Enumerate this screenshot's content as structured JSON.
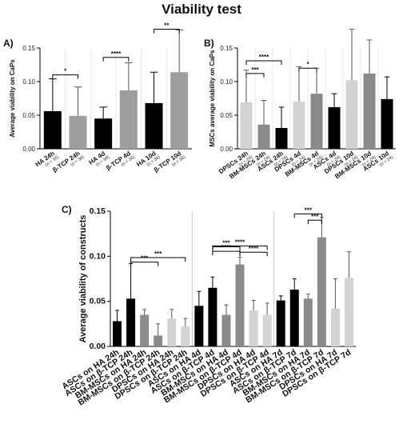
{
  "title": "Viability test",
  "chart_data": [
    {
      "panel": "A)",
      "type": "bar",
      "ylabel": "Average viability on CaPs",
      "ylim": [
        0,
        0.15
      ],
      "yticks": [
        "0.00",
        "0.05",
        "0.10",
        "0.15"
      ],
      "categories": [
        "HA 24h",
        "β-TCP 24h",
        "HA 4d",
        "β-TCP 4d",
        "HA 10d",
        "β-TCP 10d"
      ],
      "n_labels": [
        "(n = 36)",
        "(n = 36)",
        "(n = 36)",
        "(n = 36)",
        "(n = 36)",
        "(n = 36)"
      ],
      "values": [
        0.056,
        0.049,
        0.045,
        0.087,
        0.068,
        0.114
      ],
      "errors": [
        0.048,
        0.043,
        0.017,
        0.041,
        0.046,
        0.063
      ],
      "colors": [
        "#000000",
        "#9e9e9e",
        "#000000",
        "#9e9e9e",
        "#000000",
        "#9e9e9e"
      ],
      "significance": [
        {
          "from": 0,
          "to": 1,
          "y": 0.11,
          "label": "*"
        },
        {
          "from": 2,
          "to": 3,
          "y": 0.136,
          "label": "****"
        },
        {
          "from": 4,
          "to": 5,
          "y": 0.178,
          "label": "**"
        }
      ]
    },
    {
      "panel": "B)",
      "type": "bar",
      "ylabel": "MSCs average viability on CaPs",
      "ylim": [
        0,
        0.15
      ],
      "yticks": [
        "0.00",
        "0.05",
        "0.10",
        "0.15"
      ],
      "categories": [
        "DPSCs 24h",
        "BM-MSCs 24h",
        "ASCs 24h",
        "DPSCs 4d",
        "BM-MSCs 4d",
        "ASCs 4d",
        "DPSCs 10d",
        "BM-MSCs 10d",
        "ASCs 10d"
      ],
      "n_labels": [
        "(n = 24)",
        "(n = 24)",
        "(n = 24)",
        "(n = 24)",
        "(n = 24)",
        "(n = 24)",
        "(n = 24)",
        "(n = 24)",
        "(n = 24)"
      ],
      "values": [
        0.069,
        0.036,
        0.031,
        0.07,
        0.082,
        0.062,
        0.102,
        0.112,
        0.074
      ],
      "errors": [
        0.048,
        0.036,
        0.031,
        0.052,
        0.038,
        0.02,
        0.076,
        0.05,
        0.033
      ],
      "colors": [
        "#d3d3d3",
        "#8a8a8a",
        "#000000",
        "#d3d3d3",
        "#8a8a8a",
        "#000000",
        "#d3d3d3",
        "#8a8a8a",
        "#000000"
      ],
      "significance": [
        {
          "from": 0,
          "to": 1,
          "y": 0.112,
          "label": "***"
        },
        {
          "from": 0,
          "to": 2,
          "y": 0.131,
          "label": "****"
        },
        {
          "from": 3,
          "to": 4,
          "y": 0.12,
          "label": "*"
        }
      ]
    },
    {
      "panel": "C)",
      "type": "bar",
      "ylabel": "Average viability of constructs",
      "ylim": [
        0,
        0.15
      ],
      "yticks": [
        "0.00",
        "0.05",
        "0.10",
        "0.15"
      ],
      "categories": [
        "ASCs on HA 24h",
        "ASCs on β-TCP 24h",
        "BM-MSCs on HA 24h",
        "BM-MSCs on β-TCP 24h",
        "DPSCs on HA 24h",
        "DPSCs on β-TCP 24h",
        "ASCs on HA 4d",
        "ASCs on β-TCP 4d",
        "BM-MSCs on HA 4d",
        "BM-MSCs on β-TCP 4d",
        "DPSCs on HA 4d",
        "DPSCs on β-TCP 4d",
        "ASCs on HA 7d",
        "ASCs on β-TCP 7d",
        "BM-MSCs on HA 7d",
        "BM-MSCs on β-TCP 7d",
        "DPSCs on HA 7d",
        "DPSCs on β-TCP 7d"
      ],
      "values": [
        0.028,
        0.053,
        0.035,
        0.012,
        0.031,
        0.022,
        0.045,
        0.065,
        0.035,
        0.091,
        0.04,
        0.035,
        0.051,
        0.063,
        0.053,
        0.121,
        0.042,
        0.076
      ],
      "errors": [
        0.012,
        0.039,
        0.006,
        0.013,
        0.01,
        0.009,
        0.016,
        0.012,
        0.011,
        0.008,
        0.011,
        0.013,
        0.005,
        0.012,
        0.005,
        0.022,
        0.033,
        0.029
      ],
      "colors": [
        "#000000",
        "#000000",
        "#8a8a8a",
        "#8a8a8a",
        "#d3d3d3",
        "#d3d3d3",
        "#000000",
        "#000000",
        "#8a8a8a",
        "#8a8a8a",
        "#d3d3d3",
        "#d3d3d3",
        "#000000",
        "#000000",
        "#8a8a8a",
        "#8a8a8a",
        "#d3d3d3",
        "#d3d3d3"
      ],
      "group_separators": [
        6,
        12
      ],
      "significance": [
        {
          "from": 1,
          "to": 3,
          "y": 0.0935,
          "label": "***"
        },
        {
          "from": 1,
          "to": 5,
          "y": 0.0985,
          "label": "***"
        },
        {
          "from": 7,
          "to": 9,
          "y": 0.1105,
          "label": "***"
        },
        {
          "from": 9,
          "to": 11,
          "y": 0.1045,
          "label": "****"
        },
        {
          "from": 7,
          "to": 11,
          "y": 0.1115,
          "label": "****"
        },
        {
          "from": 7,
          "to": 9,
          "y": 0.1055,
          "label": "****"
        },
        {
          "from": 13,
          "to": 15,
          "y": 0.147,
          "label": "***"
        },
        {
          "from": 14,
          "to": 15,
          "y": 0.14,
          "label": "***"
        }
      ]
    }
  ]
}
